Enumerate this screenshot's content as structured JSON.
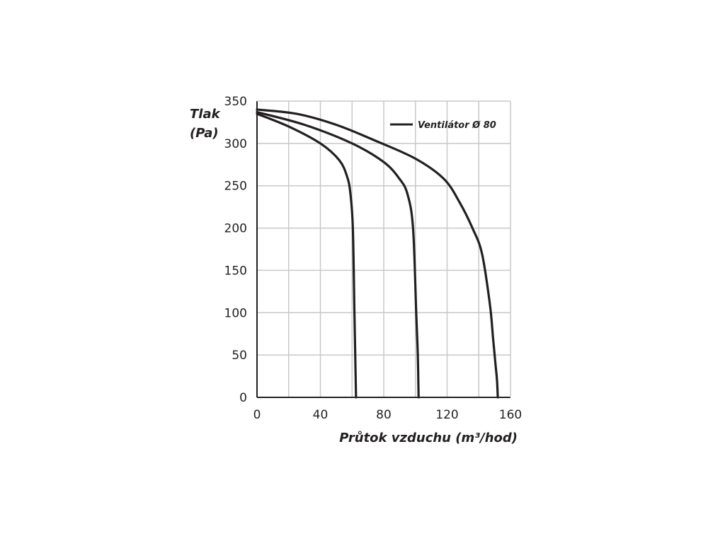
{
  "chart_data": {
    "type": "line",
    "xlabel": "Průtok vzduchu (m³/hod)",
    "ylabel_line1": "Tlak",
    "ylabel_line2": "(Pa)",
    "xlim": [
      0,
      160
    ],
    "ylim": [
      0,
      350
    ],
    "x_ticks": [
      "0",
      "40",
      "80",
      "120",
      "160"
    ],
    "y_ticks": [
      "0",
      "50",
      "100",
      "150",
      "200",
      "250",
      "300",
      "350"
    ],
    "grid": true,
    "grid_x_step": 20,
    "grid_y_step": 50,
    "legend": {
      "label": "Ventilátor Ø 80",
      "placement": "top-right"
    },
    "colors": {
      "line": "#231f20",
      "grid": "#c8c8c8",
      "axis": "#231f20"
    },
    "series": [
      {
        "x": [
          0,
          20,
          40,
          52,
          57,
          59,
          60.5,
          61.5,
          62,
          62.5
        ],
        "y": [
          335,
          320,
          300,
          280,
          260,
          240,
          200,
          100,
          50,
          0
        ]
      },
      {
        "x": [
          0,
          30,
          60,
          80,
          90,
          95,
          98.5,
          100.5,
          101.5,
          102
        ],
        "y": [
          337,
          322,
          300,
          278,
          258,
          240,
          200,
          100,
          50,
          0
        ]
      },
      {
        "x": [
          0,
          25,
          50,
          75,
          100,
          118,
          128,
          136,
          142,
          147,
          149,
          150.5,
          151.5,
          152
        ],
        "y": [
          340,
          335,
          322,
          303,
          282,
          258,
          230,
          200,
          170,
          110,
          70,
          40,
          20,
          0
        ]
      }
    ]
  }
}
